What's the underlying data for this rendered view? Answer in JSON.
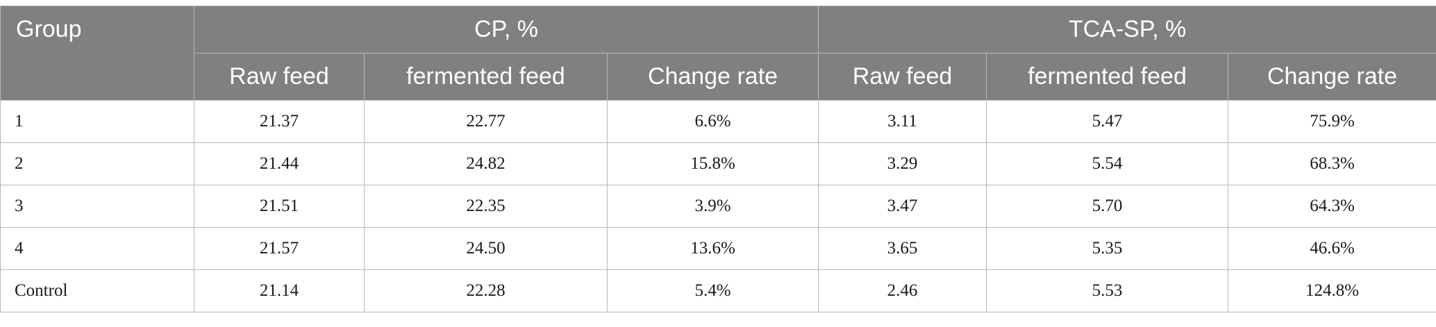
{
  "table": {
    "group_header": "Group",
    "column_groups": [
      {
        "label": "CP, %"
      },
      {
        "label": "TCA-SP, %"
      }
    ],
    "sub_headers": [
      "Raw feed",
      "fermented feed",
      "Change rate",
      "Raw feed",
      "fermented feed",
      "Change rate"
    ],
    "rows": [
      {
        "group": "1",
        "cells": [
          "21.37",
          "22.77",
          "6.6%",
          "3.11",
          "5.47",
          "75.9%"
        ]
      },
      {
        "group": "2",
        "cells": [
          "21.44",
          "24.82",
          "15.8%",
          "3.29",
          "5.54",
          "68.3%"
        ]
      },
      {
        "group": "3",
        "cells": [
          "21.51",
          "22.35",
          "3.9%",
          "3.47",
          "5.70",
          "64.3%"
        ]
      },
      {
        "group": "4",
        "cells": [
          "21.57",
          "24.50",
          "13.6%",
          "3.65",
          "5.35",
          "46.6%"
        ]
      },
      {
        "group": "Control",
        "cells": [
          "21.14",
          "22.28",
          "5.4%",
          "2.46",
          "5.53",
          "124.8%"
        ]
      }
    ]
  },
  "colors": {
    "header_background": "#808080",
    "header_text": "#ffffff",
    "border": "#b8b8b8"
  }
}
